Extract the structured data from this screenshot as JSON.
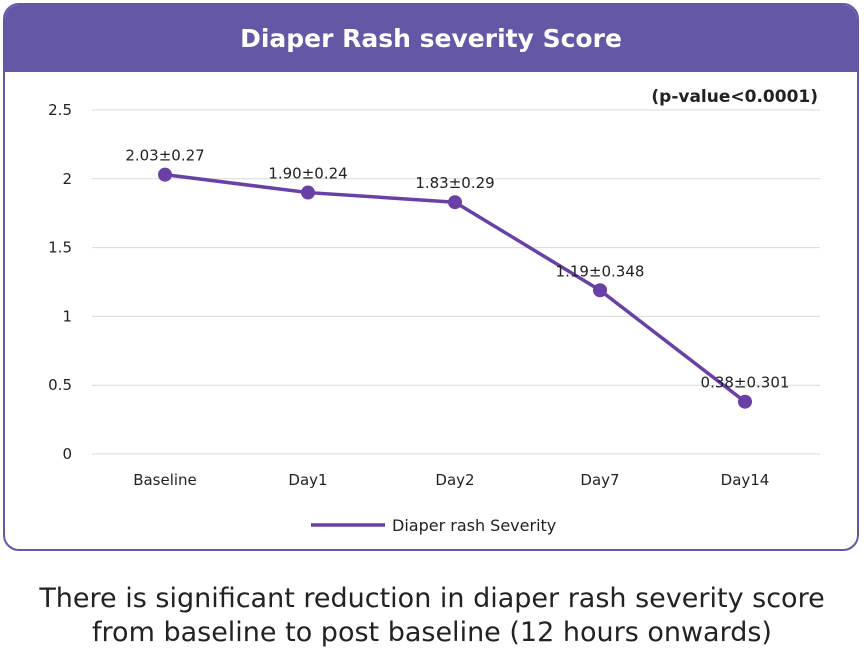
{
  "chart_data": {
    "type": "line",
    "title": "Diaper Rash severity Score",
    "annotation": "(p-value<0.0001)",
    "categories": [
      "Baseline",
      "Day1",
      "Day2",
      "Day7",
      "Day14"
    ],
    "series": [
      {
        "name": "Diaper rash Severity",
        "values": [
          2.03,
          1.9,
          1.83,
          1.19,
          0.38
        ],
        "labels": [
          "2.03±0.27",
          "1.90±0.24",
          "1.83±0.29",
          "1.19±0.348",
          "0.38±0.301"
        ],
        "color": "#6a3fa6"
      }
    ],
    "ylim": [
      0,
      2.5
    ],
    "yticks": [
      "0",
      "0.5",
      "1",
      "1.5",
      "2",
      "2.5"
    ],
    "grid": true,
    "legend": "bottom"
  },
  "caption": {
    "line1": "There is significant reduction in diaper rash severity score",
    "line2": "from baseline to post baseline (12 hours onwards)"
  }
}
